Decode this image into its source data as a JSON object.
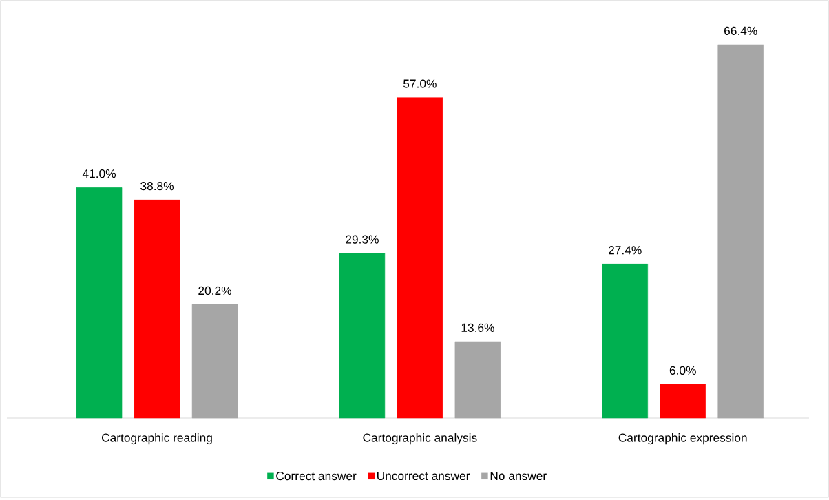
{
  "chart_data": {
    "type": "bar",
    "categories": [
      "Cartographic reading",
      "Cartographic analysis",
      "Cartographic expression"
    ],
    "series": [
      {
        "name": "Correct answer",
        "color": "#00b050",
        "values": [
          41.0,
          29.3,
          27.4
        ],
        "value_labels": [
          "41.0%",
          "29.3%",
          "27.4%"
        ]
      },
      {
        "name": "Uncorrect answer",
        "color": "#ff0000",
        "values": [
          38.8,
          57.0,
          6.0
        ],
        "value_labels": [
          "38.8%",
          "57.0%",
          "6.0%"
        ]
      },
      {
        "name": "No answer",
        "color": "#a6a6a6",
        "values": [
          20.2,
          13.6,
          66.4
        ],
        "value_labels": [
          "20.2%",
          "13.6%",
          "66.4%"
        ]
      }
    ],
    "legend": "bottom"
  }
}
